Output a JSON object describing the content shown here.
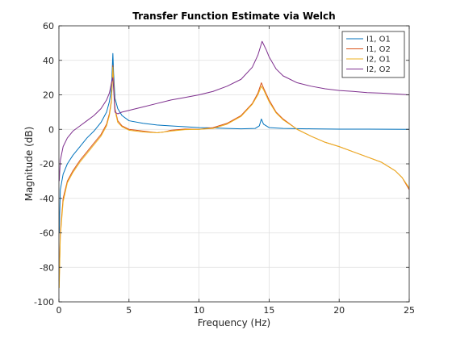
{
  "chart_data": {
    "type": "line",
    "title": "Transfer Function Estimate via Welch",
    "xlabel": "Frequency (Hz)",
    "ylabel": "Magnitude (dB)",
    "xlim": [
      0,
      25
    ],
    "ylim": [
      -100,
      60
    ],
    "xticks": [
      0,
      5,
      10,
      15,
      20,
      25
    ],
    "yticks": [
      -100,
      -80,
      -60,
      -40,
      -20,
      0,
      20,
      40,
      60
    ],
    "grid": true,
    "legend_position": "top-right",
    "series": [
      {
        "name": "I1, O1",
        "color": "#0072BD",
        "points": [
          [
            0.02,
            -60
          ],
          [
            0.1,
            -35
          ],
          [
            0.3,
            -26
          ],
          [
            0.6,
            -20
          ],
          [
            1.0,
            -15
          ],
          [
            1.5,
            -10
          ],
          [
            2.0,
            -5
          ],
          [
            2.5,
            -1
          ],
          [
            3.0,
            4
          ],
          [
            3.4,
            10
          ],
          [
            3.6,
            16
          ],
          [
            3.75,
            24
          ],
          [
            3.85,
            44
          ],
          [
            3.9,
            33
          ],
          [
            4.0,
            18
          ],
          [
            4.2,
            12
          ],
          [
            4.5,
            8
          ],
          [
            5.0,
            5
          ],
          [
            6.0,
            3.5
          ],
          [
            7.0,
            2.5
          ],
          [
            8.0,
            2
          ],
          [
            9.0,
            1.5
          ],
          [
            10.0,
            1
          ],
          [
            11.0,
            0.8
          ],
          [
            12.0,
            0.5
          ],
          [
            13.0,
            0.3
          ],
          [
            14.0,
            0.5
          ],
          [
            14.3,
            2
          ],
          [
            14.45,
            6
          ],
          [
            14.6,
            3
          ],
          [
            15.0,
            1
          ],
          [
            16.0,
            0.5
          ],
          [
            18.0,
            0.3
          ],
          [
            20.0,
            0.1
          ],
          [
            22.0,
            0.1
          ],
          [
            25.0,
            0
          ]
        ]
      },
      {
        "name": "I1, O2",
        "color": "#D95319",
        "points": [
          [
            0.02,
            -88
          ],
          [
            0.1,
            -60
          ],
          [
            0.3,
            -40
          ],
          [
            0.6,
            -30
          ],
          [
            1.0,
            -24
          ],
          [
            1.5,
            -18
          ],
          [
            2.0,
            -13
          ],
          [
            2.5,
            -8
          ],
          [
            3.0,
            -3
          ],
          [
            3.4,
            3
          ],
          [
            3.6,
            9
          ],
          [
            3.75,
            17
          ],
          [
            3.85,
            37
          ],
          [
            3.9,
            28
          ],
          [
            4.0,
            12
          ],
          [
            4.2,
            5
          ],
          [
            4.5,
            2
          ],
          [
            5.0,
            0
          ],
          [
            6.0,
            -1
          ],
          [
            7.0,
            -2
          ],
          [
            7.5,
            -1.5
          ],
          [
            8.0,
            -0.5
          ],
          [
            9.0,
            0.2
          ],
          [
            10.0,
            0
          ],
          [
            11.0,
            1
          ],
          [
            12.0,
            3.5
          ],
          [
            13.0,
            8
          ],
          [
            13.8,
            15
          ],
          [
            14.2,
            21
          ],
          [
            14.45,
            27
          ],
          [
            14.6,
            24
          ],
          [
            15.0,
            17
          ],
          [
            15.5,
            10
          ],
          [
            16.0,
            6
          ],
          [
            17.0,
            0
          ],
          [
            18.0,
            -4
          ],
          [
            19.0,
            -7.5
          ],
          [
            20.0,
            -10
          ],
          [
            21.0,
            -13
          ],
          [
            22.0,
            -16
          ],
          [
            23.0,
            -19
          ],
          [
            24.0,
            -24
          ],
          [
            24.5,
            -28
          ],
          [
            25.0,
            -35
          ]
        ]
      },
      {
        "name": "I2, O1",
        "color": "#EDB120",
        "points": [
          [
            0.02,
            -92
          ],
          [
            0.1,
            -62
          ],
          [
            0.3,
            -42
          ],
          [
            0.6,
            -31
          ],
          [
            1.0,
            -25
          ],
          [
            1.5,
            -19
          ],
          [
            2.0,
            -14
          ],
          [
            2.5,
            -9
          ],
          [
            3.0,
            -4
          ],
          [
            3.4,
            2
          ],
          [
            3.6,
            8
          ],
          [
            3.75,
            16
          ],
          [
            3.85,
            36
          ],
          [
            3.9,
            27
          ],
          [
            4.0,
            11
          ],
          [
            4.2,
            4
          ],
          [
            4.5,
            1.5
          ],
          [
            5.0,
            -0.5
          ],
          [
            6.0,
            -1.5
          ],
          [
            7.0,
            -2
          ],
          [
            7.5,
            -1.5
          ],
          [
            8.0,
            -1
          ],
          [
            9.0,
            -0.2
          ],
          [
            10.0,
            0
          ],
          [
            11.0,
            0.5
          ],
          [
            12.0,
            3
          ],
          [
            13.0,
            7.5
          ],
          [
            13.8,
            14.5
          ],
          [
            14.2,
            20
          ],
          [
            14.45,
            25
          ],
          [
            14.6,
            23
          ],
          [
            15.0,
            16
          ],
          [
            15.5,
            9.5
          ],
          [
            16.0,
            5.5
          ],
          [
            17.0,
            0
          ],
          [
            18.0,
            -4
          ],
          [
            19.0,
            -7.5
          ],
          [
            20.0,
            -10
          ],
          [
            21.0,
            -13
          ],
          [
            22.0,
            -16
          ],
          [
            23.0,
            -19
          ],
          [
            24.0,
            -24
          ],
          [
            24.5,
            -28
          ],
          [
            25.0,
            -34
          ]
        ]
      },
      {
        "name": "I2, O2",
        "color": "#7E2F8E",
        "points": [
          [
            0.02,
            -30
          ],
          [
            0.1,
            -18
          ],
          [
            0.3,
            -10
          ],
          [
            0.6,
            -5
          ],
          [
            1.0,
            -1
          ],
          [
            1.5,
            2
          ],
          [
            2.0,
            5
          ],
          [
            2.5,
            8
          ],
          [
            3.0,
            12
          ],
          [
            3.4,
            17
          ],
          [
            3.6,
            21
          ],
          [
            3.75,
            27
          ],
          [
            3.85,
            30
          ],
          [
            3.9,
            24
          ],
          [
            4.0,
            10
          ],
          [
            4.2,
            9
          ],
          [
            4.5,
            10
          ],
          [
            5.0,
            11
          ],
          [
            6.0,
            13
          ],
          [
            7.0,
            15
          ],
          [
            8.0,
            17
          ],
          [
            9.0,
            18.5
          ],
          [
            10.0,
            20
          ],
          [
            11.0,
            22
          ],
          [
            12.0,
            25
          ],
          [
            13.0,
            29
          ],
          [
            13.8,
            36
          ],
          [
            14.2,
            43
          ],
          [
            14.5,
            51
          ],
          [
            14.8,
            46
          ],
          [
            15.0,
            42
          ],
          [
            15.5,
            35
          ],
          [
            16.0,
            31
          ],
          [
            17.0,
            27
          ],
          [
            18.0,
            25
          ],
          [
            19.0,
            23.5
          ],
          [
            20.0,
            22.5
          ],
          [
            21.0,
            22
          ],
          [
            22.0,
            21.3
          ],
          [
            23.0,
            21
          ],
          [
            24.0,
            20.5
          ],
          [
            25.0,
            20
          ]
        ]
      }
    ]
  }
}
